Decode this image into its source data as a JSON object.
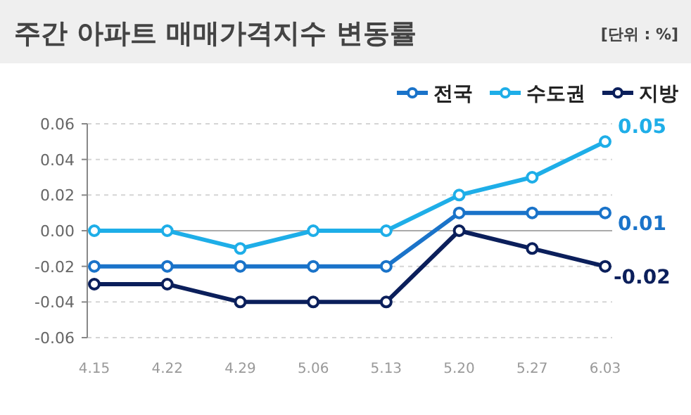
{
  "chart_data": {
    "type": "line",
    "title": "주간 아파트 매매가격지수 변동률",
    "annotations": [
      "[단위 : %]"
    ],
    "categories": [
      "4.15",
      "4.22",
      "4.29",
      "5.06",
      "5.13",
      "5.20",
      "5.27",
      "6.03"
    ],
    "series": [
      {
        "name": "전국",
        "color": "#1a73c9",
        "values": [
          -0.02,
          -0.02,
          -0.02,
          -0.02,
          -0.02,
          0.01,
          0.01,
          0.01
        ],
        "value_labels": [
          null,
          null,
          null,
          null,
          null,
          null,
          null,
          "0.01"
        ]
      },
      {
        "name": "수도권",
        "color": "#1eaee8",
        "values": [
          0,
          0,
          -0.01,
          0,
          0,
          0.02,
          0.03,
          0.05
        ],
        "value_labels": [
          null,
          null,
          null,
          null,
          null,
          null,
          null,
          "0.05"
        ]
      },
      {
        "name": "지방",
        "color": "#0b1f5b",
        "values": [
          -0.03,
          -0.03,
          -0.04,
          -0.04,
          -0.04,
          0,
          -0.01,
          -0.02
        ],
        "value_labels": [
          null,
          null,
          null,
          null,
          null,
          null,
          null,
          "-0.02"
        ]
      }
    ],
    "ylim": [
      -0.06,
      0.06
    ],
    "yticks": [
      {
        "value": -0.06,
        "label": "-0.06"
      },
      {
        "value": -0.04,
        "label": "-0.04"
      },
      {
        "value": -0.02,
        "label": "-0.02"
      },
      {
        "value": 0,
        "label": "0.00"
      },
      {
        "value": 0.02,
        "label": "0.02"
      },
      {
        "value": 0.04,
        "label": "0.04"
      },
      {
        "value": 0.06,
        "label": "0.06"
      }
    ],
    "grid": "y",
    "legend": "top right",
    "marker": "circle",
    "line_style": "solid"
  }
}
